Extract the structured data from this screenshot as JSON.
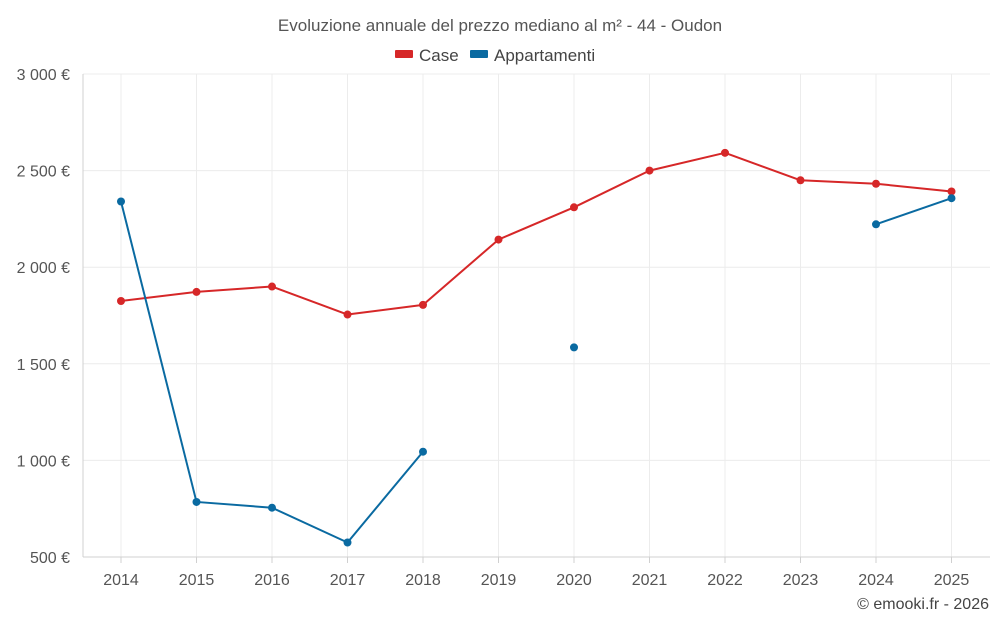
{
  "chart_data": {
    "type": "line",
    "title": "Evoluzione annuale del prezzo mediano al m² - 44 - Oudon",
    "categories": [
      "2014",
      "2015",
      "2016",
      "2017",
      "2018",
      "2019",
      "2020",
      "2021",
      "2022",
      "2023",
      "2024",
      "2025"
    ],
    "y_ticks": [
      500,
      1000,
      1500,
      2000,
      2500,
      3000
    ],
    "y_tick_labels": [
      "500 €",
      "1 000 €",
      "1 500 €",
      "2 000 €",
      "2 500 €",
      "3 000 €"
    ],
    "ylim": [
      500,
      3000
    ],
    "grid": true,
    "legend_position": "top-center",
    "series": [
      {
        "name": "Case",
        "color": "#d62728",
        "values": [
          1825,
          1872,
          1900,
          1755,
          1805,
          2143,
          2310,
          2500,
          2592,
          2450,
          2432,
          2392
        ]
      },
      {
        "name": "Appartamenti",
        "color": "#0a6aa1",
        "values": [
          2340,
          785,
          755,
          575,
          1045,
          null,
          1585,
          null,
          null,
          null,
          2222,
          2357
        ]
      }
    ],
    "credit": "© emooki.fr - 2026"
  }
}
